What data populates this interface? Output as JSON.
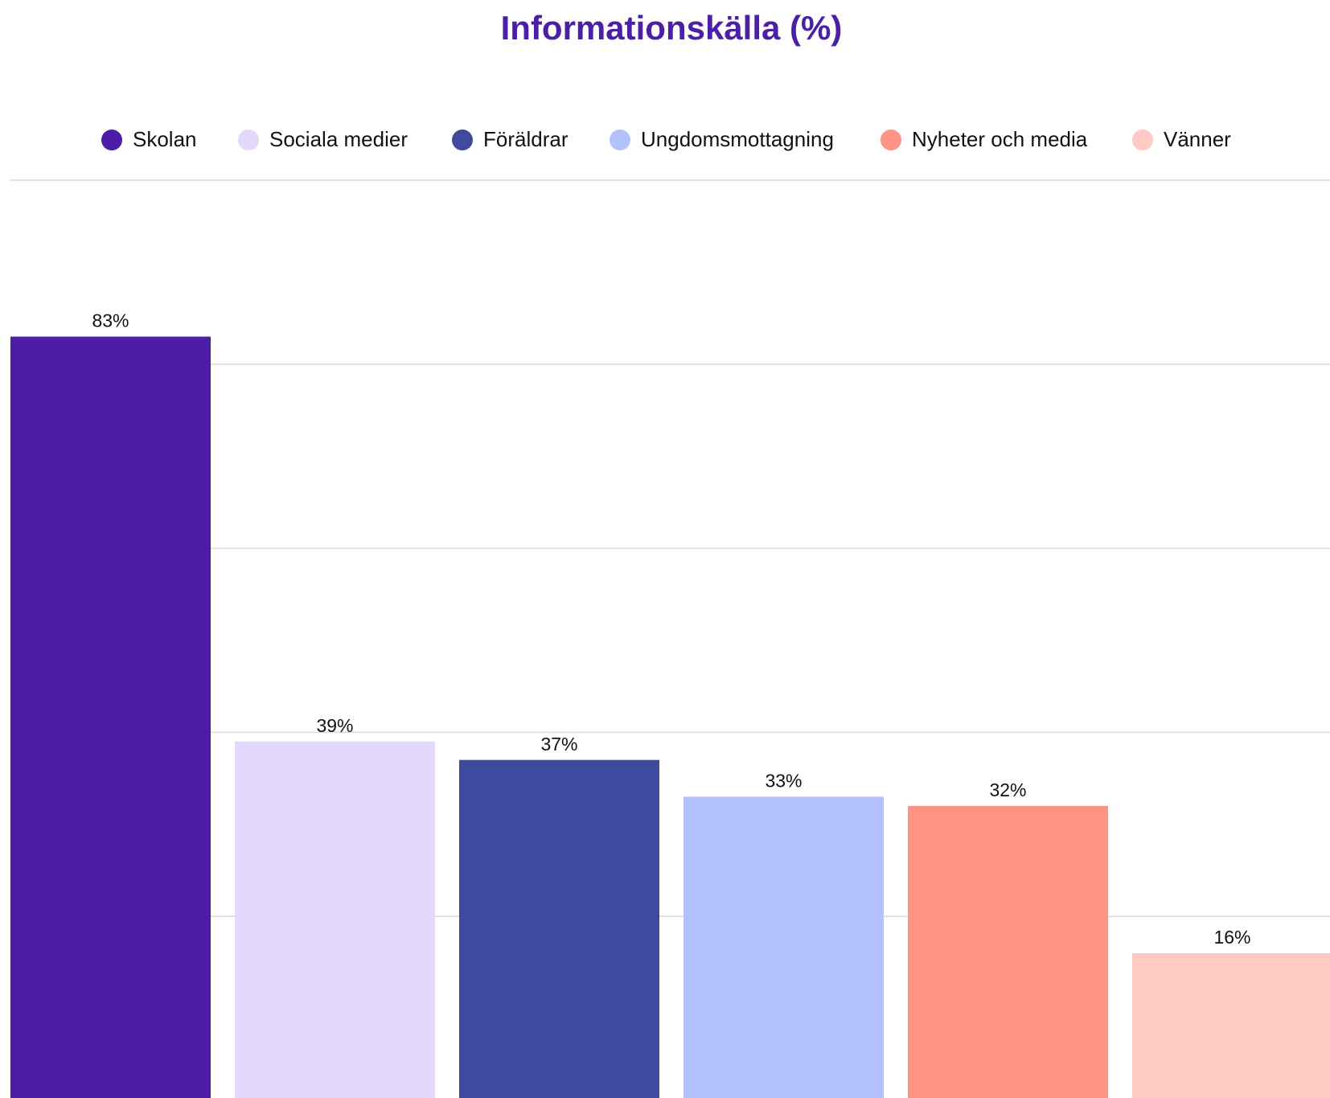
{
  "chart_data": {
    "type": "bar",
    "title": "Informationskälla (%)",
    "categories": [
      "Skolan",
      "Sociala medier",
      "Föräldrar",
      "Ungdomsmottagning",
      "Nyheter och media",
      "Vänner"
    ],
    "values": [
      83,
      39,
      37,
      33,
      32,
      16
    ],
    "value_labels": [
      "83%",
      "39%",
      "37%",
      "33%",
      "32%",
      "16%"
    ],
    "colors": [
      "#4c1ea8",
      "#e4d9fd",
      "#3e4a9e",
      "#b3c2fd",
      "#ff9384",
      "#ffc9c4"
    ],
    "ylim": [
      0,
      100
    ],
    "yticks": [
      0,
      20,
      40,
      60,
      80,
      100
    ],
    "grid": true
  }
}
